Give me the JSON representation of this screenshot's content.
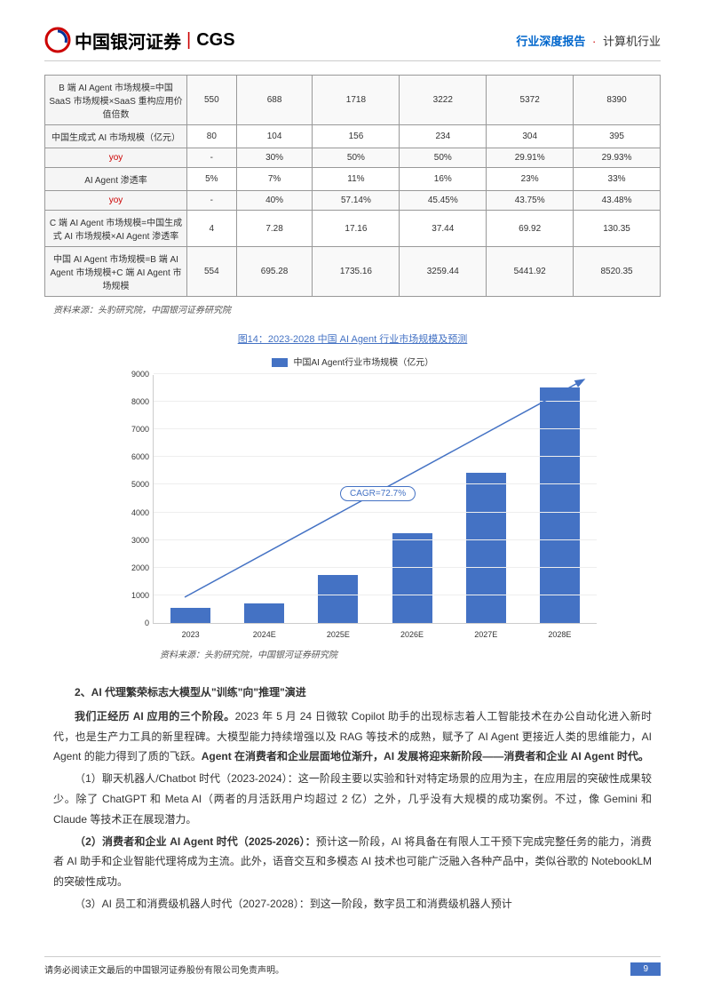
{
  "header": {
    "logo_cn": "中国银河证券",
    "logo_en": "CGS",
    "right_blue": "行业深度报告",
    "right_dot": "·",
    "right_black": "计算机行业"
  },
  "table": {
    "rows": [
      {
        "label": "B 端 AI Agent 市场规模=中国 SaaS 市场规模×SaaS 重构应用价值倍数",
        "cells": [
          "550",
          "688",
          "1718",
          "3222",
          "5372",
          "8390"
        ],
        "yoy": false,
        "striped": true
      },
      {
        "label": "中国生成式 AI 市场规模（亿元）",
        "cells": [
          "80",
          "104",
          "156",
          "234",
          "304",
          "395"
        ],
        "yoy": false,
        "striped": false
      },
      {
        "label": "yoy",
        "cells": [
          "-",
          "30%",
          "50%",
          "50%",
          "29.91%",
          "29.93%"
        ],
        "yoy": true,
        "striped": true
      },
      {
        "label": "AI Agent 渗透率",
        "cells": [
          "5%",
          "7%",
          "11%",
          "16%",
          "23%",
          "33%"
        ],
        "yoy": false,
        "striped": false
      },
      {
        "label": "yoy",
        "cells": [
          "-",
          "40%",
          "57.14%",
          "45.45%",
          "43.75%",
          "43.48%"
        ],
        "yoy": true,
        "striped": true
      },
      {
        "label": "C 端 AI Agent 市场规模=中国生成式 AI 市场规模×AI Agent 渗透率",
        "cells": [
          "4",
          "7.28",
          "17.16",
          "37.44",
          "69.92",
          "130.35"
        ],
        "yoy": false,
        "striped": false
      },
      {
        "label": "中国 AI Agent 市场规模=B 端 AI Agent 市场规模+C 端 AI Agent 市场规模",
        "cells": [
          "554",
          "695.28",
          "1735.16",
          "3259.44",
          "5441.92",
          "8520.35"
        ],
        "yoy": false,
        "striped": true
      }
    ]
  },
  "source": "资料来源：头豹研究院，中国银河证券研究院",
  "chart": {
    "title": "图14：2023-2028 中国 AI Agent 行业市场规模及预测",
    "legend": "中国AI Agent行业市场规模（亿元）",
    "ymax": 9000,
    "ytick_step": 1000,
    "bar_color": "#4472c4",
    "categories": [
      "2023",
      "2024E",
      "2025E",
      "2026E",
      "2027E",
      "2028E"
    ],
    "values": [
      554,
      695,
      1735,
      3259,
      5442,
      8520
    ],
    "cagr_label": "CAGR=72.7%"
  },
  "body": {
    "section": "2、AI 代理繁荣标志大模型从\"训练\"向\"推理\"演进",
    "p1a": "我们正经历 AI 应用的三个阶段。",
    "p1b": "2023 年 5 月 24 日微软 Copilot 助手的出现标志着人工智能技术在办公自动化进入新时代，也是生产力工具的新里程碑。大模型能力持续增强以及 RAG 等技术的成熟，赋予了 AI Agent 更接近人类的思维能力，AI Agent 的能力得到了质的飞跃。",
    "p1c": "Agent 在消费者和企业层面地位渐升，AI 发展将迎来新阶段——消费者和企业 AI Agent 时代。",
    "p2": "（1）聊天机器人/Chatbot 时代（2023-2024）：这一阶段主要以实验和针对特定场景的应用为主，在应用层的突破性成果较少。除了 ChatGPT 和 Meta AI（两者的月活跃用户均超过 2 亿）之外，几乎没有大规模的成功案例。不过，像 Gemini 和 Claude 等技术正在展现潜力。",
    "p3a": "（2）消费者和企业 AI Agent 时代（2025-2026）：",
    "p3b": "预计这一阶段，AI 将具备在有限人工干预下完成完整任务的能力，消费者 AI 助手和企业智能代理将成为主流。此外，语音交互和多模态 AI 技术也可能广泛融入各种产品中，类似谷歌的 NotebookLM 的突破性成功。",
    "p4": "（3）AI 员工和消费级机器人时代（2027-2028）：到这一阶段，数字员工和消费级机器人预计"
  },
  "footer": {
    "disclaimer": "请务必阅读正文最后的中国银河证券股份有限公司免责声明。",
    "page": "9"
  }
}
